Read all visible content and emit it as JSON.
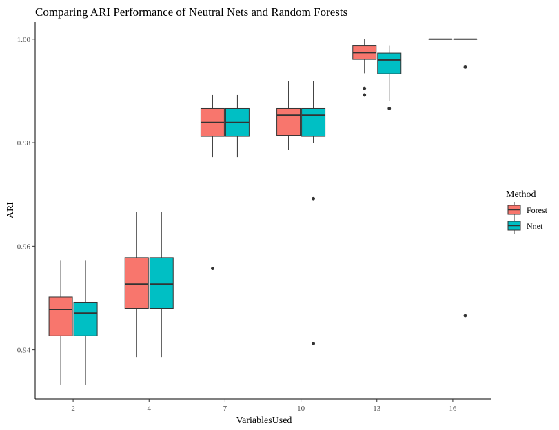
{
  "chart_data": {
    "type": "boxplot",
    "title": "Comparing ARI Performance of Neutral Nets and Random Forests",
    "xlabel": "VariablesUsed",
    "ylabel": "ARI",
    "ylim": [
      0.9305,
      1.0033
    ],
    "y_ticks": [
      {
        "value": 0.94,
        "label": "0.94"
      },
      {
        "value": 0.96,
        "label": "0.96"
      },
      {
        "value": 0.98,
        "label": "0.98"
      },
      {
        "value": 1.0,
        "label": "1.00"
      }
    ],
    "categories": [
      "2",
      "4",
      "7",
      "10",
      "13",
      "16"
    ],
    "legend": {
      "title": "Method",
      "position": "right"
    },
    "grid": false,
    "series": [
      {
        "name": "Forest",
        "color": "#F8766D",
        "boxes": [
          {
            "lower_whisker": 0.9333,
            "q1": 0.9427,
            "median": 0.9478,
            "q3": 0.9502,
            "upper_whisker": 0.9572,
            "outliers": []
          },
          {
            "lower_whisker": 0.9386,
            "q1": 0.948,
            "median": 0.9527,
            "q3": 0.9578,
            "upper_whisker": 0.9666,
            "outliers": []
          },
          {
            "lower_whisker": 0.9772,
            "q1": 0.9812,
            "median": 0.9839,
            "q3": 0.9866,
            "upper_whisker": 0.9892,
            "outliers": [
              0.9557
            ]
          },
          {
            "lower_whisker": 0.9786,
            "q1": 0.9814,
            "median": 0.9853,
            "q3": 0.9866,
            "upper_whisker": 0.9919,
            "outliers": []
          },
          {
            "lower_whisker": 0.9934,
            "q1": 0.9961,
            "median": 0.9974,
            "q3": 0.9987,
            "upper_whisker": 1.0,
            "outliers": [
              0.9905,
              0.9892
            ]
          },
          {
            "lower_whisker": 1.0,
            "q1": 1.0,
            "median": 1.0,
            "q3": 1.0,
            "upper_whisker": 1.0,
            "outliers": []
          }
        ]
      },
      {
        "name": "Nnet",
        "color": "#00BFC4",
        "boxes": [
          {
            "lower_whisker": 0.9333,
            "q1": 0.9427,
            "median": 0.9471,
            "q3": 0.9492,
            "upper_whisker": 0.9572,
            "outliers": []
          },
          {
            "lower_whisker": 0.9386,
            "q1": 0.948,
            "median": 0.9527,
            "q3": 0.9578,
            "upper_whisker": 0.9666,
            "outliers": []
          },
          {
            "lower_whisker": 0.9772,
            "q1": 0.9812,
            "median": 0.9839,
            "q3": 0.9866,
            "upper_whisker": 0.9892,
            "outliers": []
          },
          {
            "lower_whisker": 0.98,
            "q1": 0.9812,
            "median": 0.9853,
            "q3": 0.9866,
            "upper_whisker": 0.9919,
            "outliers": [
              0.9692,
              0.9412
            ]
          },
          {
            "lower_whisker": 0.988,
            "q1": 0.9933,
            "median": 0.996,
            "q3": 0.9973,
            "upper_whisker": 0.9987,
            "outliers": [
              0.9866
            ]
          },
          {
            "lower_whisker": 1.0,
            "q1": 1.0,
            "median": 1.0,
            "q3": 1.0,
            "upper_whisker": 1.0,
            "outliers": [
              0.9946,
              0.9466
            ]
          }
        ]
      }
    ]
  }
}
